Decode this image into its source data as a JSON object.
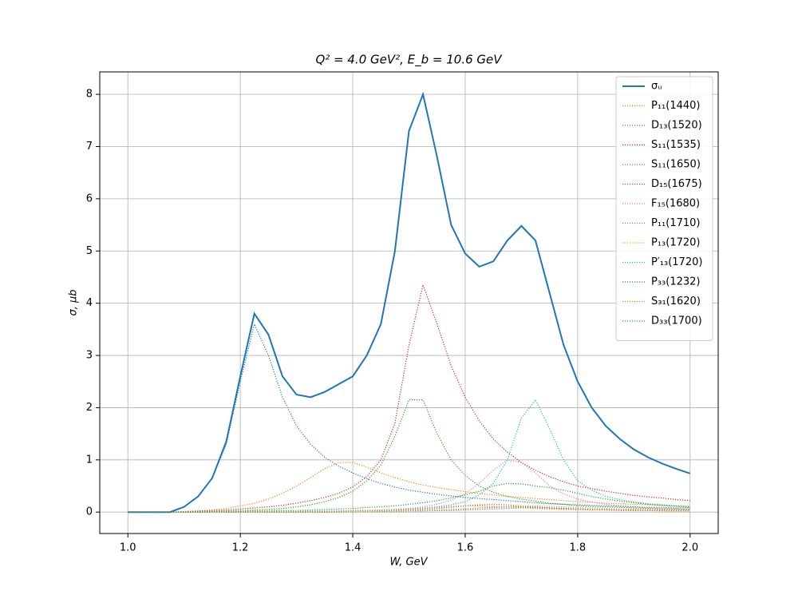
{
  "chart_data": {
    "type": "line",
    "title": "Q² = 4.0 GeV²,  E_b = 10.6 GeV",
    "x_label": "W, GeV",
    "y_label": "σ, μb",
    "xlim": [
      0.95,
      2.05
    ],
    "ylim": [
      -0.41,
      8.43
    ],
    "xticks": [
      {
        "value": 1,
        "label": "1.0"
      },
      1.2,
      1.4,
      1.6,
      1.8,
      {
        "value": 2,
        "label": "2.0"
      }
    ],
    "yticks": [
      0,
      1,
      2,
      3,
      4,
      5,
      6,
      7,
      8
    ],
    "grid": true,
    "legend": "upper right",
    "x": [
      1.0,
      1.025,
      1.05,
      1.075,
      1.1,
      1.125,
      1.15,
      1.175,
      1.2,
      1.225,
      1.25,
      1.275,
      1.3,
      1.325,
      1.35,
      1.375,
      1.4,
      1.425,
      1.45,
      1.475,
      1.5,
      1.525,
      1.55,
      1.575,
      1.6,
      1.625,
      1.65,
      1.675,
      1.7,
      1.725,
      1.75,
      1.775,
      1.8,
      1.825,
      1.85,
      1.875,
      1.9,
      1.925,
      1.95,
      1.975,
      2.0
    ],
    "series": [
      {
        "name": "σᵤ",
        "color": "#1f77b4",
        "style": "solid",
        "values": [
          0,
          0,
          0,
          0,
          0.1,
          0.3,
          0.65,
          1.35,
          2.6,
          3.8,
          3.4,
          2.6,
          2.25,
          2.2,
          2.3,
          2.45,
          2.6,
          3.0,
          3.6,
          5.0,
          7.3,
          8.0,
          6.8,
          5.5,
          4.95,
          4.7,
          4.8,
          5.2,
          5.48,
          5.2,
          4.2,
          3.2,
          2.5,
          2.0,
          1.65,
          1.4,
          1.2,
          1.05,
          0.93,
          0.83,
          0.74
        ]
      },
      {
        "name": "P₁₁(1440)",
        "color": "#ff7f0e",
        "style": "dotted",
        "values": [
          0,
          0,
          0,
          0,
          0.01,
          0.02,
          0.04,
          0.07,
          0.12,
          0.17,
          0.25,
          0.36,
          0.5,
          0.66,
          0.83,
          0.95,
          0.95,
          0.86,
          0.75,
          0.66,
          0.58,
          0.52,
          0.47,
          0.43,
          0.39,
          0.36,
          0.33,
          0.3,
          0.28,
          0.26,
          0.24,
          0.22,
          0.2,
          0.19,
          0.17,
          0.16,
          0.15,
          0.14,
          0.13,
          0.12,
          0.12
        ]
      },
      {
        "name": "D₁₃(1520)",
        "color": "#2ca02c",
        "style": "dotted",
        "values": [
          0,
          0,
          0,
          0,
          0,
          0.01,
          0.01,
          0.02,
          0.03,
          0.04,
          0.05,
          0.07,
          0.1,
          0.14,
          0.2,
          0.28,
          0.4,
          0.6,
          0.9,
          1.45,
          2.15,
          2.15,
          1.5,
          1.0,
          0.7,
          0.5,
          0.38,
          0.3,
          0.25,
          0.21,
          0.17,
          0.15,
          0.12,
          0.11,
          0.1,
          0.09,
          0.08,
          0.07,
          0.06,
          0.06,
          0.05
        ]
      },
      {
        "name": "S₁₁(1535)",
        "color": "#d62728",
        "style": "dotted",
        "values": [
          0,
          0,
          0,
          0,
          0.01,
          0.02,
          0.03,
          0.04,
          0.06,
          0.08,
          0.1,
          0.13,
          0.17,
          0.22,
          0.28,
          0.36,
          0.48,
          0.68,
          1.0,
          1.7,
          3.2,
          4.35,
          3.6,
          2.8,
          2.2,
          1.75,
          1.4,
          1.15,
          0.95,
          0.8,
          0.68,
          0.58,
          0.5,
          0.45,
          0.4,
          0.36,
          0.32,
          0.29,
          0.27,
          0.24,
          0.22
        ]
      },
      {
        "name": "S₁₁(1650)",
        "color": "#9467bd",
        "style": "dotted",
        "values": [
          0,
          0,
          0,
          0,
          0,
          0,
          0,
          0,
          0,
          0,
          0,
          0,
          0.01,
          0.01,
          0.01,
          0.01,
          0.02,
          0.02,
          0.02,
          0.03,
          0.04,
          0.05,
          0.07,
          0.09,
          0.12,
          0.14,
          0.15,
          0.14,
          0.12,
          0.1,
          0.08,
          0.07,
          0.06,
          0.05,
          0.05,
          0.04,
          0.04,
          0.03,
          0.03,
          0.03,
          0.03
        ]
      },
      {
        "name": "D₁₅(1675)",
        "color": "#8c564b",
        "style": "dotted",
        "values": [
          0,
          0,
          0,
          0,
          0,
          0,
          0,
          0,
          0,
          0,
          0,
          0,
          0,
          0,
          0,
          0.01,
          0.01,
          0.01,
          0.01,
          0.02,
          0.02,
          0.03,
          0.04,
          0.05,
          0.06,
          0.08,
          0.09,
          0.1,
          0.1,
          0.09,
          0.08,
          0.07,
          0.06,
          0.05,
          0.05,
          0.04,
          0.04,
          0.03,
          0.03,
          0.03,
          0.02
        ]
      },
      {
        "name": "F₁₅(1680)",
        "color": "#e377c2",
        "style": "dotted",
        "values": [
          0,
          0,
          0,
          0,
          0,
          0,
          0,
          0,
          0,
          0,
          0,
          0,
          0.01,
          0.01,
          0.01,
          0.02,
          0.02,
          0.03,
          0.04,
          0.05,
          0.07,
          0.1,
          0.15,
          0.23,
          0.35,
          0.55,
          0.8,
          1.0,
          0.95,
          0.75,
          0.5,
          0.35,
          0.25,
          0.19,
          0.15,
          0.12,
          0.1,
          0.08,
          0.07,
          0.06,
          0.05
        ]
      },
      {
        "name": "P₁₁(1710)",
        "color": "#7f7f7f",
        "style": "dotted",
        "values": [
          0,
          0,
          0,
          0,
          0,
          0,
          0,
          0,
          0,
          0,
          0,
          0,
          0,
          0,
          0,
          0,
          0.01,
          0.01,
          0.01,
          0.01,
          0.02,
          0.02,
          0.03,
          0.03,
          0.04,
          0.05,
          0.06,
          0.07,
          0.08,
          0.08,
          0.07,
          0.06,
          0.05,
          0.05,
          0.04,
          0.04,
          0.03,
          0.03,
          0.03,
          0.02,
          0.02
        ]
      },
      {
        "name": "P₁₃(1720)",
        "color": "#bcbd22",
        "style": "dotted",
        "values": [
          0,
          0,
          0,
          0,
          0,
          0,
          0,
          0,
          0,
          0,
          0,
          0,
          0,
          0,
          0.01,
          0.01,
          0.01,
          0.01,
          0.02,
          0.02,
          0.03,
          0.03,
          0.04,
          0.05,
          0.06,
          0.08,
          0.1,
          0.11,
          0.12,
          0.12,
          0.11,
          0.1,
          0.09,
          0.08,
          0.07,
          0.06,
          0.06,
          0.05,
          0.05,
          0.04,
          0.04
        ]
      },
      {
        "name": "P′₁₃(1720)",
        "color": "#17becf",
        "style": "dotted",
        "values": [
          0,
          0,
          0,
          0,
          0,
          0,
          0,
          0,
          0,
          0.01,
          0.01,
          0.01,
          0.01,
          0.02,
          0.02,
          0.02,
          0.03,
          0.03,
          0.04,
          0.05,
          0.06,
          0.08,
          0.1,
          0.14,
          0.2,
          0.33,
          0.55,
          1.0,
          1.8,
          2.15,
          1.6,
          1.0,
          0.6,
          0.42,
          0.3,
          0.24,
          0.19,
          0.16,
          0.14,
          0.12,
          0.1
        ]
      },
      {
        "name": "P₃₃(1232)",
        "color": "#1f77b4",
        "style": "dotted",
        "values": [
          0,
          0,
          0,
          0,
          0.1,
          0.3,
          0.65,
          1.3,
          2.5,
          3.6,
          3.0,
          2.2,
          1.65,
          1.3,
          1.05,
          0.88,
          0.75,
          0.64,
          0.55,
          0.48,
          0.42,
          0.38,
          0.34,
          0.31,
          0.28,
          0.26,
          0.24,
          0.22,
          0.2,
          0.18,
          0.16,
          0.15,
          0.14,
          0.13,
          0.12,
          0.11,
          0.1,
          0.09,
          0.09,
          0.08,
          0.08
        ]
      },
      {
        "name": "S₃₁(1620)",
        "color": "#ff7f0e",
        "style": "dotted",
        "values": [
          0,
          0,
          0,
          0,
          0,
          0,
          0,
          0,
          0,
          0,
          0,
          0,
          0,
          0.01,
          0.01,
          0.01,
          0.02,
          0.02,
          0.03,
          0.04,
          0.05,
          0.07,
          0.09,
          0.11,
          0.12,
          0.12,
          0.11,
          0.1,
          0.08,
          0.07,
          0.06,
          0.05,
          0.05,
          0.04,
          0.04,
          0.03,
          0.03,
          0.03,
          0.02,
          0.02,
          0.02
        ]
      },
      {
        "name": "D₃₃(1700)",
        "color": "#2ca02c",
        "style": "dotted",
        "values": [
          0,
          0,
          0,
          0,
          0,
          0,
          0.01,
          0.01,
          0.01,
          0.02,
          0.02,
          0.03,
          0.03,
          0.04,
          0.05,
          0.06,
          0.07,
          0.09,
          0.1,
          0.12,
          0.15,
          0.18,
          0.22,
          0.27,
          0.33,
          0.4,
          0.5,
          0.55,
          0.54,
          0.5,
          0.47,
          0.42,
          0.36,
          0.3,
          0.25,
          0.21,
          0.18,
          0.15,
          0.13,
          0.11,
          0.09
        ]
      }
    ]
  }
}
